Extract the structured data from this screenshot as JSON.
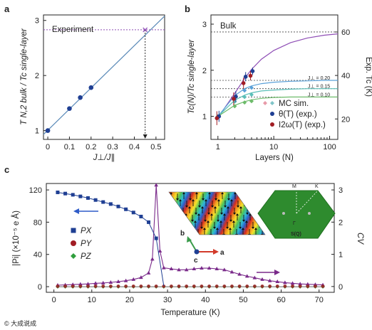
{
  "watermark": "© 大成说成",
  "chart_data": [
    {
      "panel": "a",
      "type": "line",
      "xlabel": "J⊥/J∥",
      "ylabel": "T N,2 bulk / Tc single-layer",
      "xlim": [
        -0.02,
        0.54
      ],
      "ylim": [
        0.84,
        3.1
      ],
      "xticks": [
        "0",
        "0.1",
        "0.2",
        "0.3",
        "0.4",
        "0.5"
      ],
      "yticks": [
        "1",
        "2",
        "3"
      ],
      "line": {
        "x": [
          -0.02,
          0.54
        ],
        "y": [
          0.93,
          3.08
        ]
      },
      "points": {
        "x": [
          0.0,
          0.1,
          0.15,
          0.2
        ],
        "y": [
          1.0,
          1.4,
          1.6,
          1.78
        ]
      },
      "experiment": {
        "label": "Experiment",
        "y": 2.83,
        "x_marker": 0.45
      },
      "colors": {
        "line": "#5a8ab8",
        "points": "#1f3f93",
        "experiment": "#8e4db5"
      }
    },
    {
      "panel": "b",
      "type": "line",
      "xscale": "log",
      "xlabel": "Layers (N)",
      "ylabel": "Tc(N)/Tc single-layer",
      "ylabel_right": "Exp. Tc (K)",
      "xlim": [
        0.75,
        140
      ],
      "ylim": [
        0.5,
        3.2
      ],
      "xticks": [
        "1",
        "10",
        "100"
      ],
      "yticks": [
        "1",
        "2",
        "3"
      ],
      "yticks_right": [
        "20",
        "40",
        "60"
      ],
      "bulk": {
        "label": "Bulk",
        "y": 2.83
      },
      "ref_lines": [
        {
          "label": "J⊥ = 0.20",
          "y": 1.78
        },
        {
          "label": "J⊥ = 0.15",
          "y": 1.6
        },
        {
          "label": "J⊥ = 0.10",
          "y": 1.42
        }
      ],
      "curves": [
        {
          "name": "purple",
          "color": "#8e4db5",
          "x": [
            1,
            2,
            3,
            4,
            6,
            10,
            20,
            40,
            80,
            140
          ],
          "y": [
            0.97,
            1.5,
            1.82,
            2.02,
            2.24,
            2.43,
            2.6,
            2.7,
            2.76,
            2.79
          ]
        },
        {
          "name": "blue",
          "color": "#5aa0d8",
          "x": [
            1,
            2,
            3,
            4,
            6,
            10,
            20,
            40,
            80,
            140
          ],
          "y": [
            1.0,
            1.45,
            1.6,
            1.66,
            1.71,
            1.74,
            1.76,
            1.77,
            1.78,
            1.78
          ]
        },
        {
          "name": "cyan",
          "color": "#5bbfb8",
          "x": [
            1,
            2,
            3,
            4,
            6,
            10,
            20,
            40,
            80,
            140
          ],
          "y": [
            1.0,
            1.35,
            1.46,
            1.51,
            1.55,
            1.57,
            1.59,
            1.6,
            1.6,
            1.6
          ]
        },
        {
          "name": "green",
          "color": "#6dbb6a",
          "x": [
            1,
            2,
            3,
            4,
            6,
            10,
            20,
            40,
            80,
            140
          ],
          "y": [
            1.0,
            1.24,
            1.32,
            1.36,
            1.39,
            1.41,
            1.42,
            1.42,
            1.42,
            1.42
          ]
        }
      ],
      "mc_points": {
        "x": [
          1,
          2,
          3,
          4
        ],
        "series": [
          [
            1.0,
            1.41,
            1.56,
            1.62
          ],
          [
            1.0,
            1.32,
            1.42,
            1.47
          ],
          [
            1.0,
            1.22,
            1.3,
            1.33
          ]
        ]
      },
      "theta_points": {
        "x": [
          1,
          2,
          3,
          4
        ],
        "y": [
          1.0,
          1.43,
          1.86,
          1.98
        ],
        "err": [
          0.12,
          0.12,
          0.1,
          0.08
        ]
      },
      "i2w_points": {
        "x": [
          1,
          2,
          3,
          4
        ],
        "y": [
          0.96,
          1.38,
          1.72,
          1.88
        ],
        "err": [
          0.15,
          0.14,
          0.12,
          0.1
        ]
      },
      "legend": [
        {
          "label": "MC sim.",
          "marker": "diamond",
          "color": "#e89aa8"
        },
        {
          "label": "θ(T) (exp.)",
          "marker": "circle",
          "color": "#1f3f93"
        },
        {
          "label": "I2ω(T) (exp.)",
          "marker": "circle",
          "color": "#a11d24"
        }
      ]
    },
    {
      "panel": "c",
      "type": "line",
      "xlabel": "Temperature (K)",
      "ylabel": "|Pi| (×10⁻⁵ e Å)",
      "ylabel_right": "CV",
      "xlim": [
        -2,
        74
      ],
      "ylim": [
        -7,
        128
      ],
      "ylim_right": [
        -0.18,
        3.2
      ],
      "xticks": [
        "0",
        "10",
        "20",
        "30",
        "40",
        "50",
        "60",
        "70"
      ],
      "yticks": [
        "0",
        "40",
        "80",
        "120"
      ],
      "yticks_right": [
        "0",
        "1",
        "2",
        "3"
      ],
      "px": {
        "name": "PX",
        "color": "#1f3f93",
        "x": [
          1,
          3,
          5,
          7,
          9,
          11,
          13,
          15,
          17,
          19,
          21,
          23,
          25,
          27
        ],
        "y": [
          117,
          115.5,
          114,
          112,
          110,
          107.5,
          105,
          102.5,
          99.5,
          96,
          92,
          87,
          80,
          60
        ]
      },
      "py": {
        "name": "PY",
        "color": "#a11d24",
        "x": [
          1,
          3,
          5,
          7,
          9,
          11,
          13,
          15,
          17,
          19,
          21,
          23,
          25,
          27,
          29,
          31,
          33,
          35,
          37,
          39,
          41,
          43,
          45,
          47,
          49,
          51,
          53,
          55,
          57,
          59,
          61,
          63,
          65,
          67,
          69,
          71
        ],
        "y": [
          0.5,
          0.5,
          0.5,
          0.5,
          0.5,
          0.5,
          0.5,
          0.5,
          0.5,
          0.5,
          0.5,
          0.5,
          0.5,
          0.5,
          0.5,
          0.5,
          0.5,
          0.5,
          0.5,
          0.5,
          0.5,
          0.5,
          0.5,
          0.5,
          0.5,
          0.5,
          0.5,
          0.5,
          0.5,
          0.5,
          0.5,
          0.5,
          0.5,
          0.5,
          0.5,
          0.5
        ]
      },
      "pz": {
        "name": "PZ",
        "color": "#2f9e3c",
        "x": [
          1,
          3,
          5,
          7,
          9,
          11,
          13,
          15,
          17,
          19,
          21,
          23,
          25,
          27,
          29,
          31,
          33,
          35,
          37,
          39,
          41,
          43,
          45,
          47,
          49,
          51,
          53,
          55,
          57,
          59,
          61,
          63,
          65,
          67,
          69,
          71
        ],
        "y": [
          0,
          0,
          0,
          0,
          0,
          0,
          0,
          0,
          0,
          0,
          0,
          0,
          0,
          0,
          0,
          0,
          0,
          0,
          0,
          0,
          0,
          0,
          0,
          0,
          0,
          0,
          0,
          0,
          0,
          0,
          0,
          0,
          0,
          0,
          0,
          0
        ]
      },
      "cv": {
        "name": "CV",
        "color": "#7a2a8a",
        "x": [
          1,
          3,
          5,
          7,
          9,
          11,
          13,
          15,
          17,
          19,
          21,
          23,
          25,
          26,
          27,
          28,
          29,
          31,
          33,
          35,
          37,
          39,
          41,
          43,
          45,
          47,
          49,
          51,
          53,
          55,
          57,
          59,
          61,
          63,
          65,
          67,
          69,
          71
        ],
        "y": [
          0.04,
          0.05,
          0.06,
          0.07,
          0.08,
          0.1,
          0.11,
          0.13,
          0.15,
          0.18,
          0.22,
          0.28,
          0.42,
          0.85,
          3.15,
          1.1,
          0.58,
          0.55,
          0.52,
          0.52,
          0.55,
          0.57,
          0.57,
          0.55,
          0.52,
          0.45,
          0.38,
          0.32,
          0.27,
          0.22,
          0.18,
          0.15,
          0.12,
          0.1,
          0.08,
          0.07,
          0.06,
          0.05
        ]
      },
      "legend": [
        {
          "label": "PX",
          "marker": "square",
          "color": "#1f3f93"
        },
        {
          "label": "PY",
          "marker": "circle",
          "color": "#a11d24"
        },
        {
          "label": "PZ",
          "marker": "diamond",
          "color": "#2f9e3c"
        }
      ],
      "inset_labels": {
        "b_axis": "b",
        "a_axis": "a",
        "c_axis": "c",
        "M": "M",
        "K": "K",
        "Gamma": "Γ",
        "SQ": "S(Q)"
      }
    }
  ]
}
